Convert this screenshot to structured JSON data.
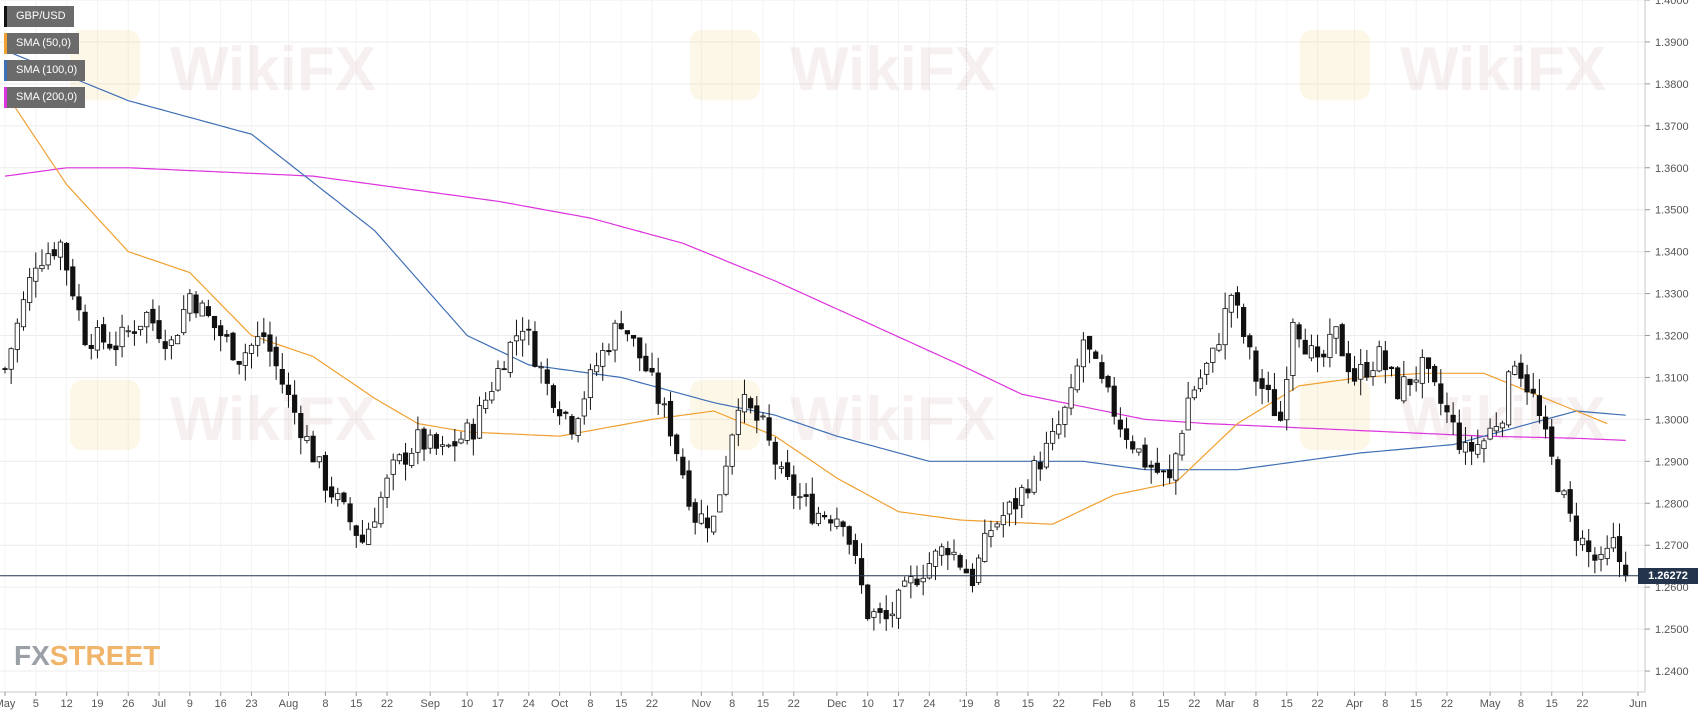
{
  "brand": {
    "fx": "FX",
    "street": "STREET"
  },
  "watermark": {
    "text": "WikiFX"
  },
  "legend": [
    {
      "label": "GBP/USD",
      "color": "#111111"
    },
    {
      "label": "SMA (50,0)",
      "color": "#f0a030"
    },
    {
      "label": "SMA (100,0)",
      "color": "#3f6fb5"
    },
    {
      "label": "SMA (200,0)",
      "color": "#dd33dd"
    }
  ],
  "chart_data": {
    "type": "candlestick",
    "title": "GBP/USD",
    "ylim": [
      1.235,
      1.4
    ],
    "y_ticks": [
      "1.4000",
      "1.3900",
      "1.3800",
      "1.3700",
      "1.3600",
      "1.3500",
      "1.3400",
      "1.3300",
      "1.3200",
      "1.3100",
      "1.3000",
      "1.2900",
      "1.2800",
      "1.2700",
      "1.2600",
      "1.2500",
      "1.2400"
    ],
    "x_ticks": [
      {
        "label": "May",
        "i": 0
      },
      {
        "label": "5",
        "i": 5
      },
      {
        "label": "12",
        "i": 10
      },
      {
        "label": "19",
        "i": 15
      },
      {
        "label": "26",
        "i": 20
      },
      {
        "label": "Jul",
        "i": 25
      },
      {
        "label": "9",
        "i": 30
      },
      {
        "label": "16",
        "i": 35
      },
      {
        "label": "23",
        "i": 40
      },
      {
        "label": "Aug",
        "i": 46
      },
      {
        "label": "8",
        "i": 52
      },
      {
        "label": "15",
        "i": 57
      },
      {
        "label": "22",
        "i": 62
      },
      {
        "label": "Sep",
        "i": 69
      },
      {
        "label": "10",
        "i": 75
      },
      {
        "label": "17",
        "i": 80
      },
      {
        "label": "24",
        "i": 85
      },
      {
        "label": "Oct",
        "i": 90
      },
      {
        "label": "8",
        "i": 95
      },
      {
        "label": "15",
        "i": 100
      },
      {
        "label": "22",
        "i": 105
      },
      {
        "label": "Nov",
        "i": 113
      },
      {
        "label": "8",
        "i": 118
      },
      {
        "label": "15",
        "i": 123
      },
      {
        "label": "22",
        "i": 128
      },
      {
        "label": "Dec",
        "i": 135
      },
      {
        "label": "10",
        "i": 140
      },
      {
        "label": "17",
        "i": 145
      },
      {
        "label": "24",
        "i": 150
      },
      {
        "label": "'19",
        "i": 156
      },
      {
        "label": "8",
        "i": 161
      },
      {
        "label": "15",
        "i": 166
      },
      {
        "label": "22",
        "i": 171
      },
      {
        "label": "Feb",
        "i": 178
      },
      {
        "label": "8",
        "i": 183
      },
      {
        "label": "15",
        "i": 188
      },
      {
        "label": "22",
        "i": 193
      },
      {
        "label": "Mar",
        "i": 198
      },
      {
        "label": "8",
        "i": 203
      },
      {
        "label": "15",
        "i": 208
      },
      {
        "label": "22",
        "i": 213
      },
      {
        "label": "Apr",
        "i": 219
      },
      {
        "label": "8",
        "i": 224
      },
      {
        "label": "15",
        "i": 229
      },
      {
        "label": "22",
        "i": 234
      },
      {
        "label": "May",
        "i": 241
      },
      {
        "label": "8",
        "i": 246
      },
      {
        "label": "15",
        "i": 251
      },
      {
        "label": "22",
        "i": 256
      },
      {
        "label": "Jun",
        "i": 265
      }
    ],
    "close_anchors": [
      [
        0,
        1.312
      ],
      [
        5,
        1.338
      ],
      [
        9,
        1.342
      ],
      [
        13,
        1.32
      ],
      [
        18,
        1.318
      ],
      [
        23,
        1.325
      ],
      [
        27,
        1.318
      ],
      [
        30,
        1.33
      ],
      [
        34,
        1.322
      ],
      [
        38,
        1.315
      ],
      [
        42,
        1.32
      ],
      [
        46,
        1.305
      ],
      [
        52,
        1.285
      ],
      [
        58,
        1.271
      ],
      [
        63,
        1.288
      ],
      [
        67,
        1.295
      ],
      [
        71,
        1.292
      ],
      [
        76,
        1.298
      ],
      [
        81,
        1.315
      ],
      [
        84,
        1.323
      ],
      [
        88,
        1.308
      ],
      [
        92,
        1.299
      ],
      [
        96,
        1.313
      ],
      [
        100,
        1.324
      ],
      [
        104,
        1.312
      ],
      [
        108,
        1.298
      ],
      [
        112,
        1.277
      ],
      [
        115,
        1.276
      ],
      [
        119,
        1.305
      ],
      [
        123,
        1.298
      ],
      [
        126,
        1.286
      ],
      [
        131,
        1.278
      ],
      [
        136,
        1.277
      ],
      [
        140,
        1.254
      ],
      [
        143,
        1.252
      ],
      [
        148,
        1.263
      ],
      [
        153,
        1.27
      ],
      [
        157,
        1.262
      ],
      [
        160,
        1.274
      ],
      [
        164,
        1.28
      ],
      [
        167,
        1.288
      ],
      [
        170,
        1.295
      ],
      [
        173,
        1.305
      ],
      [
        175,
        1.319
      ],
      [
        178,
        1.308
      ],
      [
        181,
        1.299
      ],
      [
        185,
        1.29
      ],
      [
        189,
        1.285
      ],
      [
        192,
        1.305
      ],
      [
        196,
        1.315
      ],
      [
        199,
        1.33
      ],
      [
        203,
        1.31
      ],
      [
        207,
        1.3
      ],
      [
        209,
        1.325
      ],
      [
        213,
        1.312
      ],
      [
        216,
        1.32
      ],
      [
        219,
        1.31
      ],
      [
        223,
        1.315
      ],
      [
        226,
        1.307
      ],
      [
        230,
        1.312
      ],
      [
        234,
        1.301
      ],
      [
        237,
        1.292
      ],
      [
        240,
        1.295
      ],
      [
        243,
        1.302
      ],
      [
        245,
        1.315
      ],
      [
        248,
        1.305
      ],
      [
        251,
        1.29
      ],
      [
        254,
        1.276
      ],
      [
        257,
        1.268
      ],
      [
        259,
        1.265
      ],
      [
        261,
        1.27
      ],
      [
        263,
        1.2627
      ]
    ],
    "sma50": [
      [
        0,
        1.378
      ],
      [
        10,
        1.356
      ],
      [
        20,
        1.34
      ],
      [
        30,
        1.335
      ],
      [
        40,
        1.32
      ],
      [
        50,
        1.315
      ],
      [
        60,
        1.305
      ],
      [
        67,
        1.299
      ],
      [
        75,
        1.297
      ],
      [
        90,
        1.296
      ],
      [
        105,
        1.3
      ],
      [
        115,
        1.302
      ],
      [
        125,
        1.296
      ],
      [
        135,
        1.286
      ],
      [
        145,
        1.278
      ],
      [
        155,
        1.276
      ],
      [
        170,
        1.275
      ],
      [
        180,
        1.282
      ],
      [
        190,
        1.285
      ],
      [
        200,
        1.299
      ],
      [
        210,
        1.308
      ],
      [
        220,
        1.31
      ],
      [
        230,
        1.311
      ],
      [
        240,
        1.311
      ],
      [
        250,
        1.305
      ],
      [
        260,
        1.299
      ]
    ],
    "sma100": [
      [
        0,
        1.388
      ],
      [
        20,
        1.376
      ],
      [
        40,
        1.368
      ],
      [
        60,
        1.345
      ],
      [
        75,
        1.32
      ],
      [
        85,
        1.313
      ],
      [
        100,
        1.31
      ],
      [
        115,
        1.304
      ],
      [
        125,
        1.301
      ],
      [
        135,
        1.296
      ],
      [
        150,
        1.29
      ],
      [
        165,
        1.29
      ],
      [
        175,
        1.29
      ],
      [
        185,
        1.288
      ],
      [
        200,
        1.288
      ],
      [
        210,
        1.29
      ],
      [
        220,
        1.292
      ],
      [
        235,
        1.294
      ],
      [
        245,
        1.298
      ],
      [
        255,
        1.302
      ],
      [
        263,
        1.301
      ]
    ],
    "sma200": [
      [
        0,
        1.358
      ],
      [
        10,
        1.36
      ],
      [
        20,
        1.36
      ],
      [
        35,
        1.359
      ],
      [
        50,
        1.358
      ],
      [
        65,
        1.355
      ],
      [
        80,
        1.352
      ],
      [
        95,
        1.348
      ],
      [
        110,
        1.342
      ],
      [
        125,
        1.333
      ],
      [
        140,
        1.323
      ],
      [
        155,
        1.313
      ],
      [
        165,
        1.306
      ],
      [
        175,
        1.303
      ],
      [
        185,
        1.3
      ],
      [
        195,
        1.299
      ],
      [
        210,
        1.298
      ],
      [
        225,
        1.297
      ],
      [
        240,
        1.296
      ],
      [
        255,
        1.2955
      ],
      [
        263,
        1.295
      ]
    ],
    "last_price": "1.26272",
    "last_value": 1.26272
  }
}
